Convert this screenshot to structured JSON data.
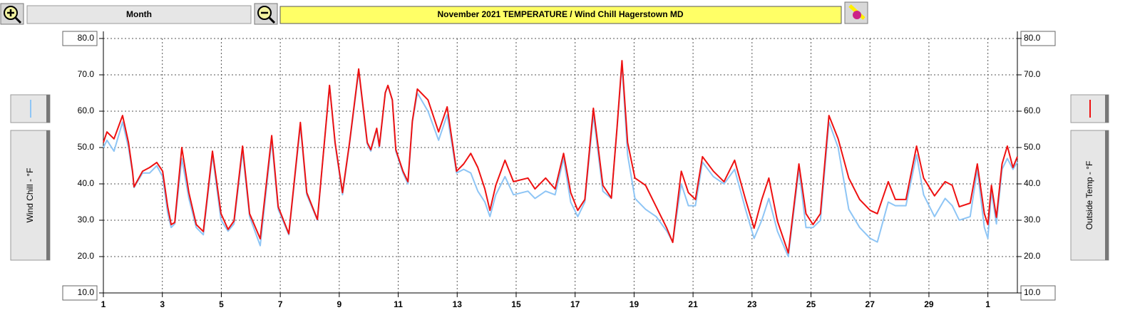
{
  "chart_data": {
    "type": "line",
    "title": "November  2021  TEMPERATURE / Wind Chill Hagerstown MD",
    "period": "Month",
    "x": [
      1.0,
      1.12,
      1.36,
      1.65,
      1.85,
      1.99,
      2.04,
      2.33,
      2.57,
      2.81,
      3.01,
      3.18,
      3.3,
      3.42,
      3.66,
      3.9,
      4.15,
      4.39,
      4.7,
      4.99,
      5.23,
      5.43,
      5.72,
      5.96,
      6.32,
      6.71,
      6.93,
      7.29,
      7.68,
      7.9,
      8.26,
      8.67,
      8.86,
      9.11,
      9.35,
      9.66,
      9.95,
      10.07,
      10.27,
      10.36,
      10.56,
      10.65,
      10.8,
      10.92,
      11.16,
      11.33,
      11.48,
      11.65,
      12.01,
      12.37,
      12.66,
      12.98,
      13.22,
      13.46,
      13.7,
      13.94,
      14.11,
      14.31,
      14.62,
      14.91,
      15.4,
      15.64,
      16.0,
      16.32,
      16.61,
      16.85,
      17.09,
      17.33,
      17.62,
      17.94,
      18.23,
      18.42,
      18.59,
      18.78,
      19.03,
      19.39,
      19.75,
      20.11,
      20.31,
      20.6,
      20.84,
      21.08,
      21.32,
      21.69,
      22.05,
      22.41,
      22.78,
      23.07,
      23.33,
      23.57,
      23.86,
      24.23,
      24.59,
      24.83,
      25.07,
      25.32,
      25.61,
      25.92,
      26.28,
      26.65,
      27.01,
      27.25,
      27.62,
      27.86,
      28.22,
      28.58,
      28.82,
      29.19,
      29.55,
      29.79,
      30.03,
      30.4,
      30.64,
      30.88,
      31.0,
      31.12,
      31.29,
      31.48,
      31.66,
      31.85,
      32.0
    ],
    "series": [
      {
        "name": "Wind Chill - °F",
        "color": "#8ec5f5",
        "axis": "y",
        "values": [
          50,
          52,
          49,
          57,
          50,
          43,
          39,
          43,
          43,
          45,
          42,
          32,
          28,
          29,
          47,
          36,
          28,
          26,
          48,
          30,
          27,
          29,
          49,
          31,
          23,
          52,
          33,
          26,
          56,
          37,
          30,
          67,
          51,
          37,
          51,
          71,
          51,
          49,
          55,
          50,
          65,
          67,
          63,
          49,
          43,
          40,
          57,
          65,
          60,
          52,
          59,
          43,
          44,
          43,
          38,
          35,
          31,
          37,
          42,
          37,
          38,
          36,
          38,
          37,
          47,
          35,
          31,
          35,
          59,
          38,
          36,
          55,
          73,
          48,
          36,
          33,
          31,
          27,
          24,
          40,
          34,
          34,
          46,
          42,
          40,
          44,
          33,
          25,
          30,
          36,
          27,
          20,
          44,
          28,
          28,
          30,
          57,
          50,
          33,
          28,
          25,
          24,
          35,
          34,
          34,
          48,
          37,
          31,
          36,
          34,
          30,
          31,
          44,
          28,
          25,
          38,
          29,
          44,
          47,
          44,
          46
        ]
      },
      {
        "name": "Outside Temp - °F",
        "color": "#ee1111",
        "axis": "y2",
        "values": [
          51.4,
          54.3,
          52.4,
          58.8,
          51.4,
          43.5,
          39.2,
          43.5,
          44.5,
          45.9,
          43.5,
          33.7,
          28.8,
          29.4,
          50.0,
          37.6,
          28.8,
          26.9,
          49.0,
          31.8,
          27.5,
          29.8,
          50.4,
          31.8,
          24.9,
          53.3,
          33.7,
          26.3,
          56.9,
          37.6,
          30.2,
          67.1,
          51.4,
          37.6,
          51.4,
          71.6,
          51.4,
          49.4,
          55.3,
          50.4,
          65.1,
          67.1,
          63.1,
          49.4,
          43.5,
          40.6,
          57.3,
          66.1,
          63.1,
          54.3,
          61.2,
          43.5,
          45.5,
          48.4,
          44.5,
          38.6,
          32.7,
          39.6,
          46.5,
          40.6,
          41.6,
          38.6,
          41.6,
          38.6,
          48.4,
          37.6,
          32.7,
          35.7,
          60.8,
          39.6,
          36.1,
          55.3,
          73.9,
          51.4,
          41.6,
          39.6,
          33.7,
          27.8,
          23.9,
          43.5,
          37.6,
          35.7,
          47.5,
          43.5,
          40.6,
          46.5,
          35.7,
          27.8,
          35.7,
          41.6,
          29.8,
          21.0,
          45.5,
          31.8,
          28.8,
          31.8,
          58.8,
          52.4,
          41.6,
          35.7,
          32.7,
          31.8,
          40.6,
          35.7,
          35.7,
          50.4,
          41.6,
          36.7,
          40.6,
          39.6,
          33.7,
          34.7,
          45.5,
          31.8,
          28.8,
          39.6,
          30.8,
          45.5,
          50.4,
          44.5,
          47.5
        ]
      }
    ],
    "xlim": [
      1,
      32
    ],
    "xticks": [
      1,
      3,
      5,
      7,
      9,
      11,
      13,
      15,
      17,
      19,
      21,
      23,
      25,
      27,
      29,
      {
        "value": 31,
        "label": "1"
      }
    ],
    "ylim": [
      10,
      80
    ],
    "yticks": [
      {
        "value": 10,
        "label": "10.0"
      },
      {
        "value": 20,
        "label": "20.0"
      },
      {
        "value": 30,
        "label": "30.0"
      },
      {
        "value": 40,
        "label": "40.0"
      },
      {
        "value": 50,
        "label": "50.0"
      },
      {
        "value": 60,
        "label": "60.0"
      },
      {
        "value": 70,
        "label": "70.0"
      },
      {
        "value": 80,
        "label": "80.0"
      }
    ],
    "y2lim": [
      10,
      80
    ],
    "y2ticks": [
      {
        "value": 10,
        "label": "10.0"
      },
      {
        "value": 20,
        "label": "20.0"
      },
      {
        "value": 30,
        "label": "30.0"
      },
      {
        "value": 40,
        "label": "40.0"
      },
      {
        "value": 50,
        "label": "50.0"
      },
      {
        "value": 60,
        "label": "60.0"
      },
      {
        "value": 70,
        "label": "70.0"
      },
      {
        "value": 80,
        "label": "80.0"
      }
    ],
    "grid": true
  }
}
